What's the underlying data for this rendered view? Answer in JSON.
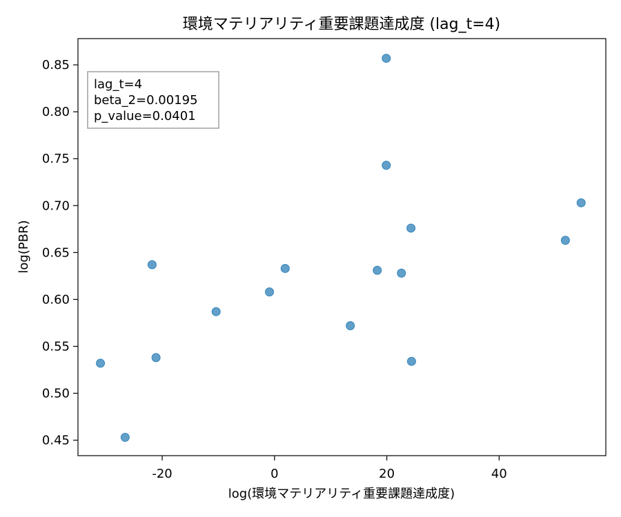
{
  "chart_data": {
    "type": "scatter",
    "title": "環境マテリアリティ重要課題達成度 (lag_t=4)",
    "xlabel": "log(環境マテリアリティ重要課題達成度)",
    "ylabel": "log(PBR)",
    "xlim": [
      -35,
      59
    ],
    "ylim": [
      0.4335,
      0.878
    ],
    "x_ticks": [
      -20,
      0,
      20,
      40
    ],
    "x_tick_labels": [
      "-20",
      "0",
      "20",
      "40"
    ],
    "y_ticks": [
      0.45,
      0.5,
      0.55,
      0.6,
      0.65,
      0.7,
      0.75,
      0.8,
      0.85
    ],
    "y_tick_labels": [
      "0.45",
      "0.50",
      "0.55",
      "0.60",
      "0.65",
      "0.70",
      "0.75",
      "0.80",
      "0.85"
    ],
    "grid": false,
    "point_color": "#1f77b4",
    "points": [
      {
        "x": -31.0,
        "y": 0.532
      },
      {
        "x": -26.6,
        "y": 0.453
      },
      {
        "x": -21.8,
        "y": 0.637
      },
      {
        "x": -21.1,
        "y": 0.538
      },
      {
        "x": -10.4,
        "y": 0.587
      },
      {
        "x": -0.9,
        "y": 0.608
      },
      {
        "x": 1.9,
        "y": 0.633
      },
      {
        "x": 13.5,
        "y": 0.572
      },
      {
        "x": 18.3,
        "y": 0.631
      },
      {
        "x": 19.9,
        "y": 0.857
      },
      {
        "x": 19.9,
        "y": 0.743
      },
      {
        "x": 22.6,
        "y": 0.628
      },
      {
        "x": 24.3,
        "y": 0.676
      },
      {
        "x": 24.4,
        "y": 0.534
      },
      {
        "x": 51.8,
        "y": 0.663
      },
      {
        "x": 54.6,
        "y": 0.703
      }
    ],
    "annotation": {
      "placement": "top-left",
      "lines": [
        "lag_t=4",
        "beta_2=0.00195",
        "p_value=0.0401"
      ]
    }
  }
}
